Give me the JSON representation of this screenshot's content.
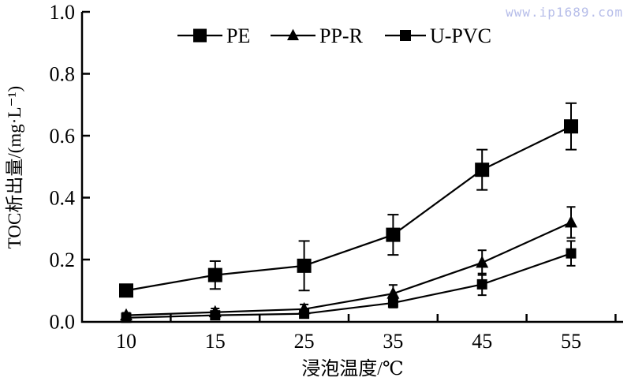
{
  "watermark": "www.ip1689.com",
  "chart_data": {
    "type": "line",
    "title": "",
    "xlabel": "浸泡温度/℃",
    "ylabel": "TOC析出量/(mg·L⁻¹)",
    "x_categories": [
      "10",
      "15",
      "25",
      "35",
      "45",
      "55"
    ],
    "ylim": [
      0.0,
      1.0
    ],
    "ytick_interval": 0.2,
    "ytick_labels": [
      "0.0",
      "0.2",
      "0.4",
      "0.6",
      "0.8",
      "1.0"
    ],
    "grid": false,
    "error_bars": true,
    "axis_color": "#000000",
    "legend": {
      "position": "top-center",
      "entries": [
        "PE",
        "PP-R",
        "U-PVC"
      ]
    },
    "series": [
      {
        "name": "PE",
        "marker": "square",
        "color": "#000000",
        "values": [
          0.1,
          0.15,
          0.18,
          0.28,
          0.49,
          0.63
        ],
        "errors": [
          0.0,
          0.045,
          0.08,
          0.065,
          0.065,
          0.075
        ]
      },
      {
        "name": "PP-R",
        "marker": "triangle",
        "color": "#000000",
        "values": [
          0.02,
          0.03,
          0.04,
          0.09,
          0.19,
          0.32
        ],
        "errors": [
          0.008,
          0.012,
          0.015,
          0.028,
          0.04,
          0.05
        ]
      },
      {
        "name": "U-PVC",
        "marker": "square-small",
        "color": "#000000",
        "values": [
          0.012,
          0.02,
          0.025,
          0.06,
          0.12,
          0.22
        ],
        "errors": [
          0.006,
          0.008,
          0.01,
          0.015,
          0.035,
          0.04
        ]
      }
    ]
  }
}
